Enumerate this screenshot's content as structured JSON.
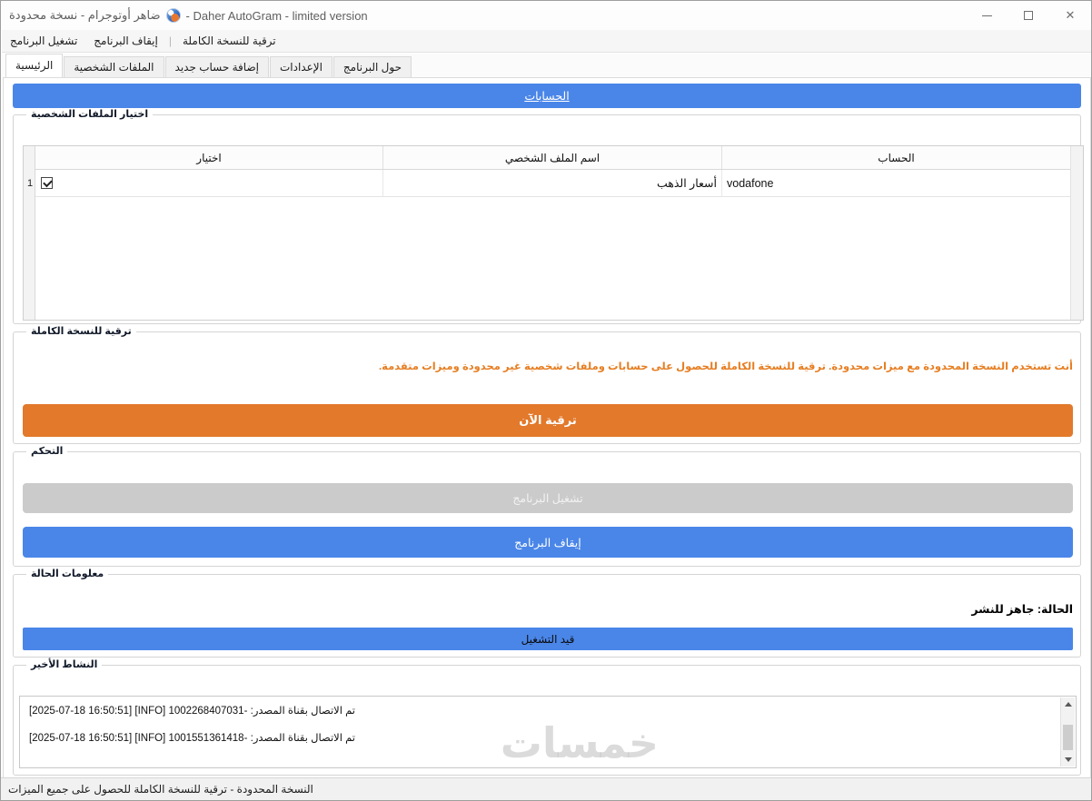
{
  "window": {
    "title_ar": "ضاهر أوتوجرام - نسخة محدودة",
    "title_en": "- Daher AutoGram - limited version",
    "close_glyph": "✕"
  },
  "menu": {
    "run": "تشغيل البرنامج",
    "stop": "إيقاف البرنامج",
    "separator": "|",
    "upgrade": "ترقية للنسخة الكاملة"
  },
  "tabs": [
    {
      "label": "الرئيسية",
      "active": true
    },
    {
      "label": "الملفات الشخصية",
      "active": false
    },
    {
      "label": "إضافة حساب جديد",
      "active": false
    },
    {
      "label": "الإعدادات",
      "active": false
    },
    {
      "label": "حول البرنامج",
      "active": false
    }
  ],
  "banner": {
    "label": "الحسابات"
  },
  "profiles": {
    "group_title": "اختيار الملفات الشخصية",
    "columns": [
      "اختيار",
      "اسم الملف الشخصي",
      "الحساب"
    ],
    "rows": [
      {
        "num": "1",
        "checked": true,
        "profile_name": "أسعار الذهب",
        "account": "vodafone"
      }
    ]
  },
  "upgrade": {
    "group_title": "ترقية للنسخة الكاملة",
    "warning": "أنت تستخدم النسخة المحدودة مع ميزات محدودة. ترقية للنسخة الكاملة للحصول على حسابات وملفات شخصية غير محدودة وميزات متقدمة.",
    "button_label": "ترقية الآن"
  },
  "control": {
    "group_title": "التحكم",
    "run_button": "تشغيل البرنامج",
    "stop_button": "إيقاف البرنامج"
  },
  "status_info": {
    "group_title": "معلومات الحالة",
    "status_text": "الحالة: جاهز للنشر",
    "progress_label": "قيد التشغيل"
  },
  "activity": {
    "group_title": "النشاط الأخير",
    "logs": [
      {
        "meta": "[2025-07-18 16:50:51] [INFO]",
        "message": "تم الاتصال بقناة المصدر: -1002268407031"
      },
      {
        "meta": "[2025-07-18 16:50:51] [INFO]",
        "message": "تم الاتصال بقناة المصدر: -1001551361418"
      }
    ]
  },
  "status_bar": {
    "text": "النسخة المحدودة - ترقية للنسخة الكاملة للحصول على جميع الميزات"
  },
  "watermark": "خمسات",
  "colors": {
    "accent_blue": "#4a86e8",
    "button_orange": "#e2792b",
    "warning_orange": "#e67e22",
    "disabled_gray": "#cbcbcb"
  }
}
